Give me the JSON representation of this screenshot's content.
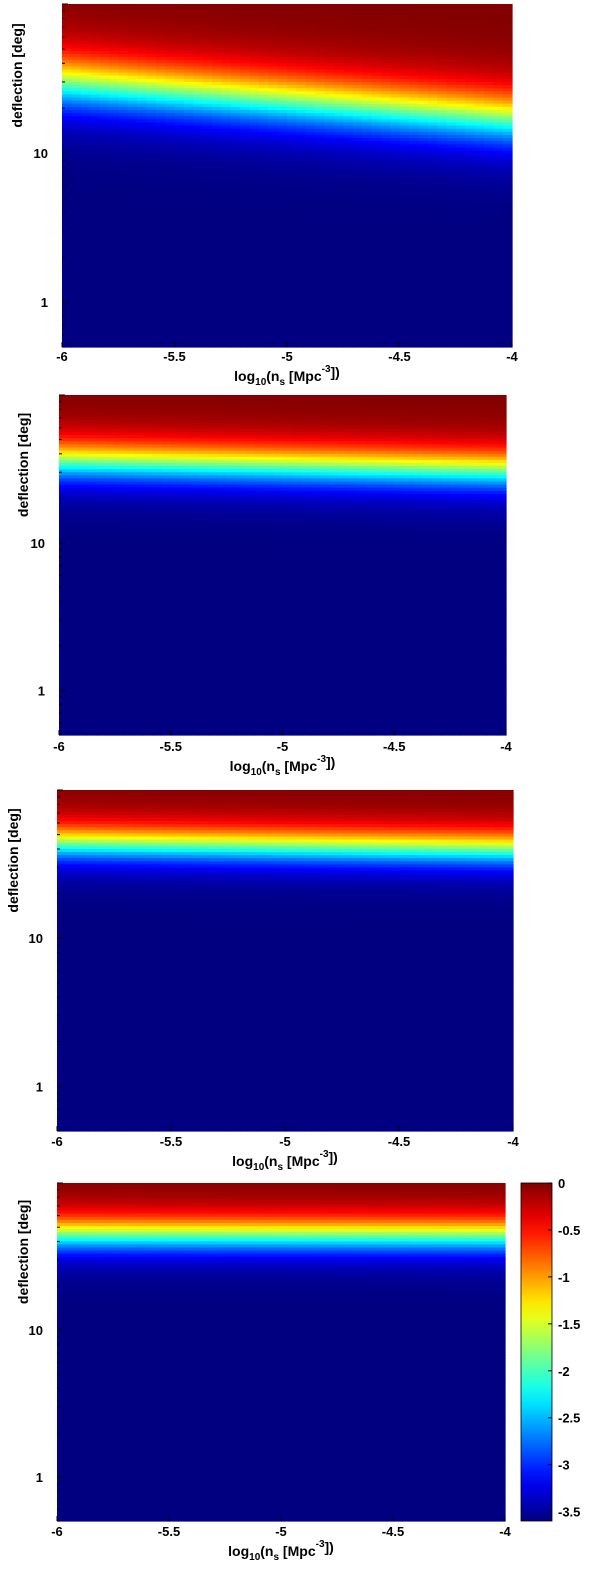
{
  "chart_data": [
    {
      "type": "heatmap",
      "xlabel": "log10(ns [Mpc-3])",
      "xlabel_parts": {
        "base": "log",
        "sub1": "10",
        "open": "(n",
        "sub2": "s",
        "unit": " [Mpc",
        "sup": "-3",
        "close": "])"
      },
      "ylabel": "deflection [deg]",
      "x_ticks": [
        "-6",
        "-5.5",
        "-5",
        "-4.5",
        "-4"
      ],
      "x_tick_values": [
        -6,
        -5.5,
        -5,
        -4.5,
        -4
      ],
      "y_ticks": [
        "1",
        "10"
      ],
      "y_tick_values": [
        1,
        10
      ],
      "y_scale": "log",
      "xlim": [
        -6,
        -4
      ],
      "ylim": [
        0.5,
        100
      ],
      "band_center_deg": {
        "at_x_-6": 30,
        "at_x_-4": 17
      },
      "band_width_decades": 0.12,
      "colorbar": false
    },
    {
      "type": "heatmap",
      "xlabel": "log10(ns [Mpc-3])",
      "xlabel_parts": {
        "base": "log",
        "sub1": "10",
        "open": "(n",
        "sub2": "s",
        "unit": " [Mpc",
        "sup": "-3",
        "close": "])"
      },
      "ylabel": "deflection [deg]",
      "x_ticks": [
        "-6",
        "-5.5",
        "-5",
        "-4.5",
        "-4"
      ],
      "x_tick_values": [
        -6,
        -5.5,
        -5,
        -4.5,
        -4
      ],
      "y_ticks": [
        "1",
        "10"
      ],
      "y_tick_values": [
        1,
        10
      ],
      "y_scale": "log",
      "xlim": [
        -6,
        -4
      ],
      "ylim": [
        0.5,
        100
      ],
      "band_center_deg": {
        "at_x_-6": 36,
        "at_x_-4": 31
      },
      "band_width_decades": 0.09,
      "colorbar": false
    },
    {
      "type": "heatmap",
      "xlabel": "log10(ns [Mpc-3])",
      "xlabel_parts": {
        "base": "log",
        "sub1": "10",
        "open": "(n",
        "sub2": "s",
        "unit": " [Mpc",
        "sup": "-3",
        "close": "])"
      },
      "ylabel": "deflection [deg]",
      "x_ticks": [
        "-6",
        "-5.5",
        "-5",
        "-4.5",
        "-4"
      ],
      "x_tick_values": [
        -6,
        -5.5,
        -5,
        -4.5,
        -4
      ],
      "y_ticks": [
        "1",
        "10"
      ],
      "y_tick_values": [
        1,
        10
      ],
      "y_scale": "log",
      "xlim": [
        -6,
        -4
      ],
      "ylim": [
        0.5,
        100
      ],
      "band_center_deg": {
        "at_x_-6": 44,
        "at_x_-4": 40
      },
      "band_width_decades": 0.08,
      "colorbar": false
    },
    {
      "type": "heatmap",
      "xlabel": "log10(ns [Mpc-3])",
      "xlabel_parts": {
        "base": "log",
        "sub1": "10",
        "open": "(n",
        "sub2": "s",
        "unit": " [Mpc",
        "sup": "-3",
        "close": "])"
      },
      "ylabel": "deflection [deg]",
      "x_ticks": [
        "-6",
        "-5.5",
        "-5",
        "-4.5",
        "-4"
      ],
      "x_tick_values": [
        -6,
        -5.5,
        -5,
        -4.5,
        -4
      ],
      "y_ticks": [
        "1",
        "10"
      ],
      "y_tick_values": [
        1,
        10
      ],
      "y_scale": "log",
      "xlim": [
        -6,
        -4
      ],
      "ylim": [
        0.5,
        100
      ],
      "band_center_deg": {
        "at_x_-6": 45,
        "at_x_-4": 44
      },
      "band_width_decades": 0.08,
      "colorbar": true,
      "colorbar_ticks": [
        "0",
        "-0.5",
        "-1",
        "-1.5",
        "-2",
        "-2.5",
        "-3",
        "-3.5"
      ],
      "colorbar_tick_values": [
        0,
        -0.5,
        -1,
        -1.5,
        -2,
        -2.5,
        -3,
        -3.5
      ],
      "colorbar_range": [
        -3.6,
        0
      ],
      "colormap": "jet"
    }
  ]
}
